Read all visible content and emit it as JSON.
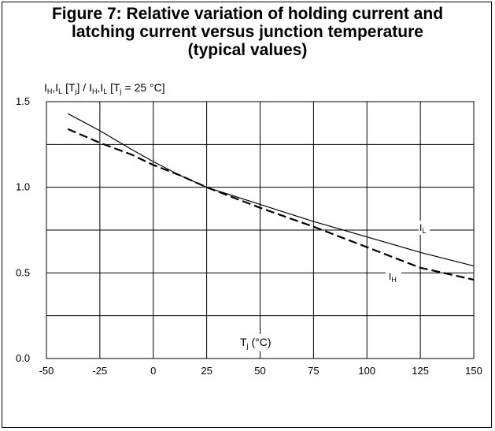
{
  "chart_data": {
    "type": "line",
    "title_lines": [
      "Figure 7: Relative variation of holding current and",
      "latching current versus junction temperature",
      "(typical values)"
    ],
    "ylabel": {
      "i1": "I",
      "s1": "H",
      "c1": ",",
      "i2": "I",
      "s2": "L",
      "mid": " [T",
      "s3": "j",
      "mid2": "] / ",
      "i3": "I",
      "s4": "H",
      "c2": ",",
      "i4": "I",
      "s5": "L",
      "tail": " [T",
      "s6": "j",
      "end": " = 25 °C]"
    },
    "xlabel": {
      "base": "T",
      "sub": "j",
      "rest": " (°C)"
    },
    "xlim": [
      -50,
      150
    ],
    "ylim": [
      0.0,
      1.5
    ],
    "x_ticks": [
      -50,
      -25,
      0,
      25,
      50,
      75,
      100,
      125,
      150
    ],
    "x_tick_labels": [
      "-50",
      "-25",
      "0",
      "25",
      "50",
      "75",
      "100",
      "125",
      "150"
    ],
    "y_ticks": [
      0.0,
      0.5,
      1.0,
      1.5
    ],
    "y_tick_labels": [
      "0.0",
      "0.5",
      "1.0",
      "1.5"
    ],
    "grid": true,
    "series": [
      {
        "name": "IL",
        "label": {
          "base": "I",
          "sub": "L"
        },
        "style": "solid",
        "x": [
          -40,
          -25,
          -10,
          0,
          12.5,
          25,
          50,
          75,
          100,
          125,
          150
        ],
        "y": [
          1.43,
          1.33,
          1.22,
          1.15,
          1.07,
          1.0,
          0.9,
          0.8,
          0.71,
          0.62,
          0.54
        ]
      },
      {
        "name": "IH",
        "label": {
          "base": "I",
          "sub": "H"
        },
        "style": "dashed",
        "x": [
          -40,
          -25,
          -10,
          0,
          12.5,
          25,
          50,
          75,
          100,
          125,
          150
        ],
        "y": [
          1.34,
          1.26,
          1.19,
          1.13,
          1.07,
          1.0,
          0.88,
          0.77,
          0.65,
          0.53,
          0.46
        ]
      }
    ]
  }
}
